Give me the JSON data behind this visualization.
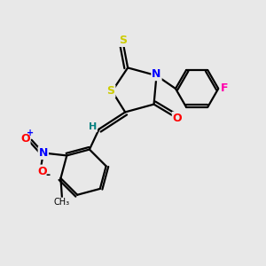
{
  "background_color": "#e8e8e8",
  "bond_color": "#000000",
  "atom_colors": {
    "S": "#cccc00",
    "N": "#0000ff",
    "O": "#ff0000",
    "F": "#ff00aa",
    "H": "#008080",
    "C": "#000000"
  }
}
